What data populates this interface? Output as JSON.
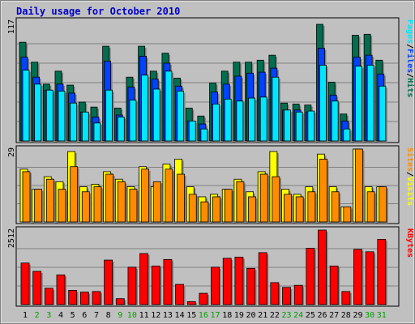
{
  "title": "Daily usage for October 2010",
  "colors": {
    "background": "#c0c0c0",
    "title": "#0000cc",
    "grid": "#808080",
    "hits": "#006e4f",
    "files": "#0042ff",
    "pages": "#00e6ff",
    "visits": "#ffff00",
    "sites": "#ff8c00",
    "kbytes": "#ff0000",
    "weekend_label": "#00a000",
    "weekday_label": "#000000"
  },
  "chart_data": [
    {
      "type": "bar",
      "panel": "top",
      "max_label": "117",
      "ylim": [
        0,
        117
      ],
      "legend": [
        {
          "text": "Pages",
          "color": "#00e6ff"
        },
        {
          "text": "/",
          "color": "#000000"
        },
        {
          "text": "Files",
          "color": "#0042ff"
        },
        {
          "text": "/",
          "color": "#000000"
        },
        {
          "text": "Hits",
          "color": "#006e4f"
        }
      ],
      "categories": [
        "1",
        "2",
        "3",
        "4",
        "5",
        "6",
        "7",
        "8",
        "9",
        "10",
        "11",
        "12",
        "13",
        "14",
        "15",
        "16",
        "17",
        "18",
        "19",
        "20",
        "21",
        "22",
        "23",
        "24",
        "25",
        "26",
        "27",
        "28",
        "29",
        "30",
        "31"
      ],
      "series": [
        {
          "name": "Hits",
          "values": [
            99,
            79,
            57,
            70,
            56,
            39,
            34,
            95,
            33,
            64,
            95,
            70,
            88,
            63,
            33,
            25,
            58,
            70,
            79,
            79,
            81,
            86,
            38,
            37,
            36,
            117,
            59,
            27,
            106,
            107,
            81
          ]
        },
        {
          "name": "Files",
          "values": [
            84,
            64,
            51,
            57,
            48,
            29,
            24,
            80,
            26,
            54,
            85,
            62,
            78,
            55,
            20,
            17,
            49,
            57,
            65,
            68,
            69,
            73,
            31,
            31,
            29,
            93,
            46,
            20,
            84,
            86,
            67
          ]
        },
        {
          "name": "Pages",
          "values": [
            71,
            57,
            51,
            50,
            38,
            29,
            18,
            51,
            24,
            41,
            66,
            52,
            70,
            50,
            20,
            12,
            37,
            42,
            40,
            43,
            44,
            64,
            31,
            29,
            30,
            76,
            40,
            12,
            75,
            76,
            55
          ]
        }
      ]
    },
    {
      "type": "bar",
      "panel": "middle",
      "max_label": "29",
      "ylim": [
        0,
        29
      ],
      "legend": [
        {
          "text": "Sites",
          "color": "#ff8c00"
        },
        {
          "text": "/",
          "color": "#000000"
        },
        {
          "text": "Visits",
          "color": "#ffff00"
        }
      ],
      "categories": [
        "1",
        "2",
        "3",
        "4",
        "5",
        "6",
        "7",
        "8",
        "9",
        "10",
        "11",
        "12",
        "13",
        "14",
        "15",
        "16",
        "17",
        "18",
        "19",
        "20",
        "21",
        "22",
        "23",
        "24",
        "25",
        "26",
        "27",
        "28",
        "29",
        "30",
        "31"
      ],
      "series": [
        {
          "name": "Visits",
          "values": [
            21,
            13,
            18,
            16,
            28,
            14,
            15,
            20,
            17,
            14,
            22,
            14,
            23,
            25,
            14,
            10,
            11,
            13,
            17,
            12,
            20,
            28,
            13,
            11,
            14,
            27,
            14,
            6,
            29,
            14,
            14
          ]
        },
        {
          "name": "Sites",
          "values": [
            20,
            13,
            17,
            13,
            22,
            12,
            14,
            19,
            16,
            13,
            21,
            16,
            21,
            19,
            11,
            8,
            10,
            13,
            16,
            10,
            19,
            18,
            11,
            10,
            12,
            25,
            12,
            6,
            29,
            12,
            14
          ]
        }
      ]
    },
    {
      "type": "bar",
      "panel": "bottom",
      "max_label": "2512",
      "ylim": [
        0,
        2512
      ],
      "legend": [
        {
          "text": "KBytes",
          "color": "#ff0000"
        }
      ],
      "categories": [
        "1",
        "2",
        "3",
        "4",
        "5",
        "6",
        "7",
        "8",
        "9",
        "10",
        "11",
        "12",
        "13",
        "14",
        "15",
        "16",
        "17",
        "18",
        "19",
        "20",
        "21",
        "22",
        "23",
        "24",
        "25",
        "26",
        "27",
        "28",
        "29",
        "30",
        "31"
      ],
      "series": [
        {
          "name": "KBytes",
          "values": [
            1400,
            1120,
            550,
            1000,
            480,
            420,
            440,
            1500,
            200,
            1260,
            1720,
            1300,
            1520,
            680,
            100,
            380,
            1260,
            1560,
            1600,
            1220,
            1750,
            740,
            580,
            650,
            1900,
            2512,
            1300,
            440,
            1860,
            1780,
            2200
          ]
        }
      ]
    }
  ],
  "day_labels": [
    "1",
    "2",
    "3",
    "4",
    "5",
    "6",
    "7",
    "8",
    "9",
    "10",
    "11",
    "12",
    "13",
    "14",
    "15",
    "16",
    "17",
    "18",
    "19",
    "20",
    "21",
    "22",
    "23",
    "24",
    "25",
    "26",
    "27",
    "28",
    "29",
    "30",
    "31"
  ],
  "weekend_days": [
    "2",
    "3",
    "9",
    "10",
    "16",
    "17",
    "23",
    "24",
    "30",
    "31"
  ]
}
